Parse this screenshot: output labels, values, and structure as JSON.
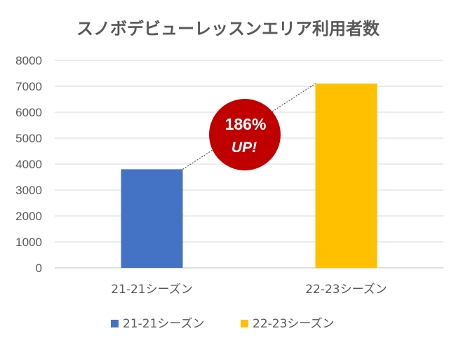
{
  "chart_data": {
    "type": "bar",
    "title": "スノボデビューレッスンエリア利用者数",
    "categories": [
      "21-21シーズン",
      "22-23シーズン"
    ],
    "series": [
      {
        "name": "21-21シーズン",
        "values": [
          3800,
          null
        ],
        "color": "#4472C4"
      },
      {
        "name": "22-23シーズン",
        "values": [
          null,
          7100
        ],
        "color": "#FFC000"
      }
    ],
    "ylim": [
      0,
      8000
    ],
    "yticks": [
      0,
      1000,
      2000,
      3000,
      4000,
      5000,
      6000,
      7000,
      8000
    ],
    "grid": true,
    "legend_position": "bottom",
    "annotation": {
      "line1": "186%",
      "line2": "UP!",
      "color": "#C00000",
      "style": "dotted connector between bar tops"
    }
  }
}
